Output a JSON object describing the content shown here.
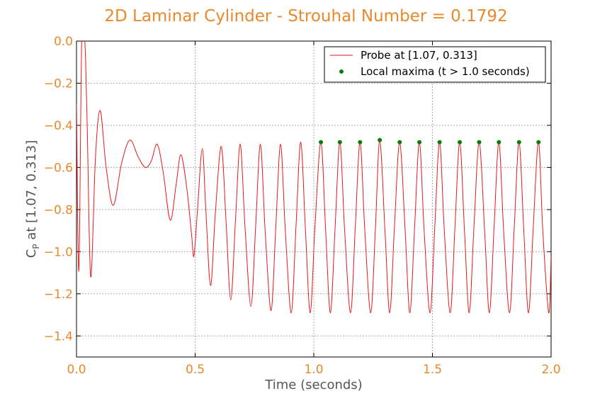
{
  "chart_data": {
    "type": "line",
    "title": "2D Laminar Cylinder - Strouhal Number = 0.1792",
    "xlabel": "Time (seconds)",
    "ylabel_main": "C",
    "ylabel_sub": "P",
    "ylabel_rest": " at [1.07, 0.313]",
    "xlim": [
      0.0,
      2.0
    ],
    "ylim": [
      -1.5,
      0.0
    ],
    "xticks": [
      0.0,
      0.5,
      1.0,
      1.5,
      2.0
    ],
    "xtick_labels": [
      "0.0",
      "0.5",
      "1.0",
      "1.5",
      "2.0"
    ],
    "yticks": [
      0.0,
      -0.2,
      -0.4,
      -0.6,
      -0.8,
      -1.0,
      -1.2,
      -1.4
    ],
    "ytick_labels": [
      "0.0",
      "−0.2",
      "−0.4",
      "−0.6",
      "−0.8",
      "−1.0",
      "−1.2",
      "−1.4"
    ],
    "grid": true,
    "legend_position": "top-right",
    "series": [
      {
        "name": "Probe at [1.07, 0.313]",
        "style": "line",
        "color": "#e31a1c",
        "points": [
          [
            0.0,
            -0.3
          ],
          [
            0.01,
            -1.09
          ],
          [
            0.022,
            0.0
          ],
          [
            0.035,
            0.0
          ],
          [
            0.045,
            -0.4
          ],
          [
            0.06,
            -1.12
          ],
          [
            0.08,
            -0.55
          ],
          [
            0.1,
            -0.33
          ],
          [
            0.125,
            -0.6
          ],
          [
            0.155,
            -0.78
          ],
          [
            0.19,
            -0.58
          ],
          [
            0.225,
            -0.47
          ],
          [
            0.26,
            -0.55
          ],
          [
            0.29,
            -0.6
          ],
          [
            0.315,
            -0.57
          ],
          [
            0.34,
            -0.49
          ],
          [
            0.365,
            -0.62
          ],
          [
            0.395,
            -0.85
          ],
          [
            0.42,
            -0.68
          ],
          [
            0.44,
            -0.54
          ],
          [
            0.465,
            -0.7
          ],
          [
            0.485,
            -0.92
          ],
          [
            0.495,
            -1.02
          ],
          [
            0.51,
            -0.8
          ],
          [
            0.53,
            -0.51
          ],
          [
            0.545,
            -0.8
          ],
          [
            0.565,
            -1.16
          ],
          [
            0.585,
            -0.82
          ],
          [
            0.61,
            -0.5
          ],
          [
            0.63,
            -0.85
          ],
          [
            0.65,
            -1.23
          ],
          [
            0.67,
            -0.85
          ],
          [
            0.69,
            -0.49
          ],
          [
            0.71,
            -0.88
          ],
          [
            0.735,
            -1.26
          ],
          [
            0.755,
            -0.88
          ],
          [
            0.775,
            -0.49
          ],
          [
            0.795,
            -0.9
          ],
          [
            0.82,
            -1.28
          ],
          [
            0.84,
            -0.88
          ],
          [
            0.86,
            -0.49
          ],
          [
            0.88,
            -0.9
          ],
          [
            0.905,
            -1.29
          ],
          [
            0.925,
            -0.88
          ],
          [
            0.945,
            -0.48
          ],
          [
            0.965,
            -0.9
          ],
          [
            0.985,
            -1.29
          ],
          [
            1.005,
            -0.88
          ],
          [
            1.03,
            -0.48
          ],
          [
            1.05,
            -0.9
          ],
          [
            1.07,
            -1.29
          ],
          [
            1.09,
            -0.88
          ],
          [
            1.11,
            -0.48
          ],
          [
            1.13,
            -0.9
          ],
          [
            1.155,
            -1.29
          ],
          [
            1.175,
            -0.88
          ],
          [
            1.195,
            -0.48
          ],
          [
            1.215,
            -0.9
          ],
          [
            1.24,
            -1.29
          ],
          [
            1.26,
            -0.88
          ],
          [
            1.278,
            -0.47
          ],
          [
            1.3,
            -0.9
          ],
          [
            1.32,
            -1.29
          ],
          [
            1.34,
            -0.88
          ],
          [
            1.362,
            -0.48
          ],
          [
            1.385,
            -0.9
          ],
          [
            1.405,
            -1.29
          ],
          [
            1.425,
            -0.88
          ],
          [
            1.445,
            -0.48
          ],
          [
            1.465,
            -0.9
          ],
          [
            1.49,
            -1.29
          ],
          [
            1.51,
            -0.88
          ],
          [
            1.53,
            -0.48
          ],
          [
            1.55,
            -0.9
          ],
          [
            1.575,
            -1.29
          ],
          [
            1.595,
            -0.88
          ],
          [
            1.615,
            -0.48
          ],
          [
            1.635,
            -0.9
          ],
          [
            1.655,
            -1.29
          ],
          [
            1.675,
            -0.88
          ],
          [
            1.697,
            -0.48
          ],
          [
            1.72,
            -0.9
          ],
          [
            1.74,
            -1.29
          ],
          [
            1.76,
            -0.88
          ],
          [
            1.78,
            -0.48
          ],
          [
            1.8,
            -0.9
          ],
          [
            1.825,
            -1.29
          ],
          [
            1.845,
            -0.88
          ],
          [
            1.865,
            -0.48
          ],
          [
            1.885,
            -0.9
          ],
          [
            1.905,
            -1.29
          ],
          [
            1.925,
            -0.88
          ],
          [
            1.947,
            -0.48
          ],
          [
            1.965,
            -0.9
          ],
          [
            1.99,
            -1.29
          ],
          [
            2.0,
            -1.02
          ]
        ]
      },
      {
        "name": "Local maxima (t > 1.0 seconds)",
        "style": "markers",
        "color": "#0a7d0a",
        "points": [
          [
            1.03,
            -0.48
          ],
          [
            1.11,
            -0.48
          ],
          [
            1.195,
            -0.48
          ],
          [
            1.278,
            -0.47
          ],
          [
            1.362,
            -0.48
          ],
          [
            1.445,
            -0.48
          ],
          [
            1.53,
            -0.48
          ],
          [
            1.615,
            -0.48
          ],
          [
            1.697,
            -0.48
          ],
          [
            1.78,
            -0.48
          ],
          [
            1.865,
            -0.48
          ],
          [
            1.947,
            -0.48
          ]
        ]
      }
    ]
  }
}
